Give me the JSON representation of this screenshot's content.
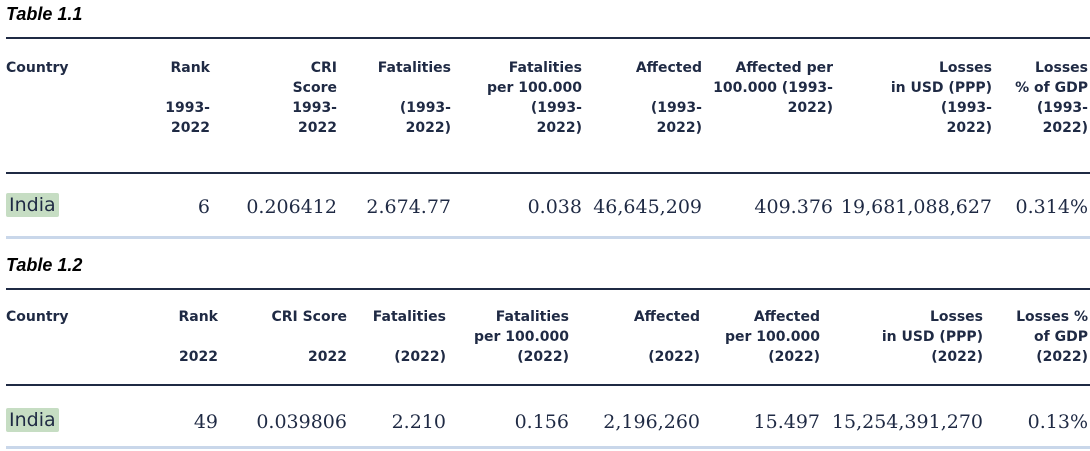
{
  "table1": {
    "caption": "Table 1.1",
    "headers": [
      "Country",
      "Rank\n\n1993-\n2022",
      "CRI\nScore\n1993-\n2022",
      "Fatalities\n\n(1993-\n2022)",
      "Fatalities\nper 100.000\n(1993-\n2022)",
      "Affected\n\n(1993-\n2022)",
      "Affected per\n100.000 (1993-\n2022)",
      "Losses\nin USD (PPP)\n(1993-\n2022)",
      "Losses\n% of GDP\n(1993-\n2022)"
    ],
    "row": [
      "India",
      "6",
      "0.206412",
      "2.674.77",
      "0.038",
      "46,645,209",
      "409.376",
      "19,681,088,627",
      "0.314%"
    ]
  },
  "table2": {
    "caption": "Table 1.2",
    "headers": [
      "Country",
      "Rank\n\n2022",
      "CRI Score\n\n2022",
      "Fatalities\n\n(2022)",
      "Fatalities\nper 100.000\n(2022)",
      "Affected\n\n(2022)",
      "Affected\nper 100.000\n(2022)",
      "Losses\nin USD (PPP)\n(2022)",
      "Losses %\nof GDP\n(2022)"
    ],
    "row": [
      "India",
      "49",
      "0.039806",
      "2.210",
      "0.156",
      "2,196,260",
      "15.497",
      "15,254,391,270",
      "0.13%"
    ]
  }
}
